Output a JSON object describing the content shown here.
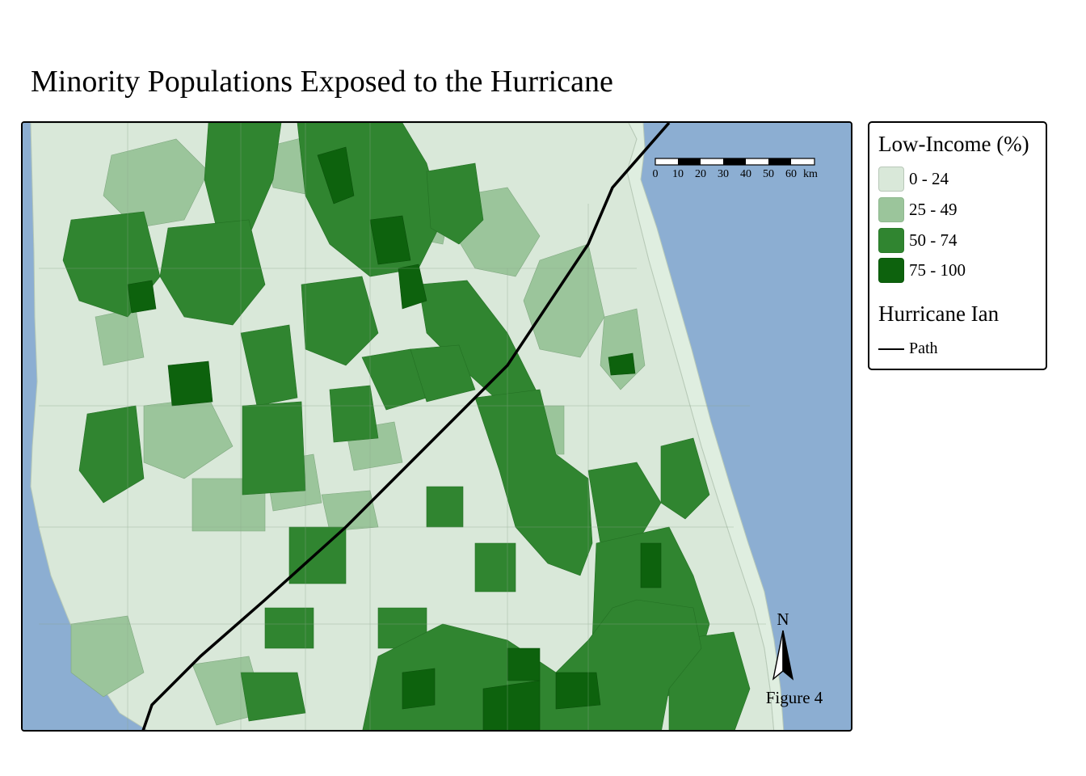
{
  "title": "Minority Populations Exposed to the Hurricane",
  "legend": {
    "title": "Low-Income (%)",
    "classes": [
      {
        "label": "0 - 24",
        "color": "#d9e8d9"
      },
      {
        "label": "25 - 49",
        "color": "#9bc59b"
      },
      {
        "label": "50 - 74",
        "color": "#308530"
      },
      {
        "label": "75 - 100",
        "color": "#0d620d"
      }
    ],
    "path_title": "Hurricane Ian",
    "path_label": "Path"
  },
  "scale_bar": {
    "ticks": [
      "0",
      "10",
      "20",
      "30",
      "40",
      "50",
      "60"
    ],
    "unit": "km"
  },
  "north_arrow": {
    "label": "N"
  },
  "figure_label": "Figure 4",
  "colors": {
    "water": "#8caed2",
    "land_base": "#d9e8d9",
    "coast_buffer": "#dbeddb",
    "track": "#000000"
  }
}
